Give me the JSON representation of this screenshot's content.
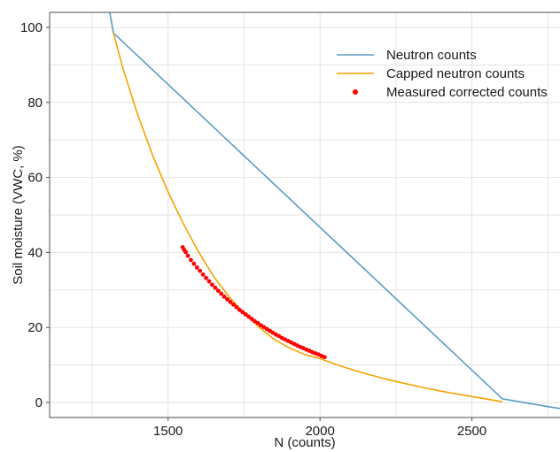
{
  "chart_data": {
    "type": "line",
    "xlabel": "N (counts)",
    "ylabel": "Soil moisture (VWC, %)",
    "xlim": [
      1110,
      2790
    ],
    "ylim": [
      -4,
      104
    ],
    "xticks": [
      1500,
      2000,
      2500
    ],
    "yticks": [
      0,
      20,
      40,
      60,
      80,
      100
    ],
    "grid": true,
    "legend_position": "top-right",
    "series": [
      {
        "name": "Neutron counts",
        "kind": "line",
        "color": "#5b9cc4",
        "points": [
          [
            1308,
            104
          ],
          [
            1320,
            98.5
          ],
          [
            2600,
            1.0
          ],
          [
            2650,
            0.3
          ],
          [
            2700,
            -0.4
          ],
          [
            2750,
            -1.1
          ],
          [
            2790,
            -1.6
          ]
        ]
      },
      {
        "name": "Capped neutron counts",
        "kind": "line",
        "color": "#f5a300",
        "points": [
          [
            1320,
            98.5
          ],
          [
            1350,
            89.4
          ],
          [
            1400,
            76.7
          ],
          [
            1450,
            65.7
          ],
          [
            1500,
            56.1
          ],
          [
            1550,
            47.7
          ],
          [
            1600,
            40.2
          ],
          [
            1650,
            33.6
          ],
          [
            1700,
            28.3
          ],
          [
            1750,
            23.8
          ],
          [
            1800,
            20.0
          ],
          [
            1850,
            16.8
          ],
          [
            1900,
            14.5
          ],
          [
            1950,
            12.8
          ],
          [
            2000,
            11.7
          ],
          [
            2050,
            10.2
          ],
          [
            2100,
            8.9
          ],
          [
            2150,
            7.7
          ],
          [
            2200,
            6.6
          ],
          [
            2250,
            5.6
          ],
          [
            2300,
            4.7
          ],
          [
            2350,
            3.8
          ],
          [
            2400,
            3.0
          ],
          [
            2450,
            2.3
          ],
          [
            2500,
            1.6
          ],
          [
            2550,
            0.9
          ],
          [
            2600,
            0.2
          ]
        ]
      },
      {
        "name": "Measured corrected counts",
        "kind": "scatter",
        "color": "#ff0000",
        "points": [
          [
            1548,
            41.4
          ],
          [
            1553,
            40.7
          ],
          [
            1558,
            40.1
          ],
          [
            1565,
            39.1
          ],
          [
            1575,
            38.0
          ],
          [
            1585,
            37.0
          ],
          [
            1595,
            36.0
          ],
          [
            1605,
            35.1
          ],
          [
            1615,
            34.1
          ],
          [
            1625,
            33.2
          ],
          [
            1635,
            32.3
          ],
          [
            1645,
            31.4
          ],
          [
            1655,
            30.6
          ],
          [
            1665,
            29.8
          ],
          [
            1675,
            29.0
          ],
          [
            1685,
            28.2
          ],
          [
            1695,
            27.5
          ],
          [
            1705,
            26.8
          ],
          [
            1715,
            26.1
          ],
          [
            1725,
            25.4
          ],
          [
            1735,
            24.7
          ],
          [
            1745,
            24.1
          ],
          [
            1755,
            23.5
          ],
          [
            1765,
            22.9
          ],
          [
            1775,
            22.3
          ],
          [
            1785,
            21.7
          ],
          [
            1795,
            21.2
          ],
          [
            1805,
            20.6
          ],
          [
            1815,
            20.1
          ],
          [
            1825,
            19.6
          ],
          [
            1835,
            19.1
          ],
          [
            1845,
            18.6
          ],
          [
            1855,
            18.1
          ],
          [
            1865,
            17.7
          ],
          [
            1875,
            17.2
          ],
          [
            1885,
            16.8
          ],
          [
            1895,
            16.4
          ],
          [
            1905,
            16.0
          ],
          [
            1915,
            15.6
          ],
          [
            1925,
            15.2
          ],
          [
            1935,
            14.8
          ],
          [
            1945,
            14.5
          ],
          [
            1955,
            14.1
          ],
          [
            1965,
            13.8
          ],
          [
            1975,
            13.4
          ],
          [
            1985,
            13.1
          ],
          [
            1995,
            12.8
          ],
          [
            2005,
            12.4
          ],
          [
            2015,
            12.1
          ]
        ]
      }
    ]
  }
}
